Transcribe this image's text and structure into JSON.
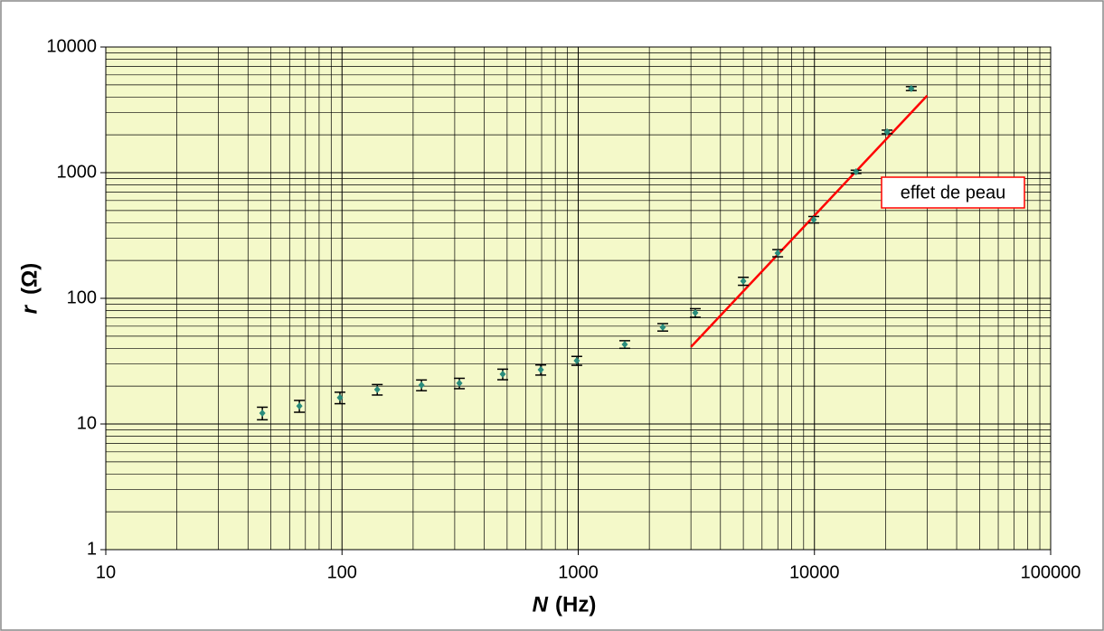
{
  "chart_data": {
    "type": "scatter",
    "x_label": "N",
    "x_unit": "(Hz)",
    "y_label": "r",
    "y_unit": "(Ω)",
    "x_log": true,
    "y_log": true,
    "grid": true,
    "xlim": [
      10,
      100000
    ],
    "xticks": [
      10,
      100,
      1000,
      10000,
      100000
    ],
    "ylim": [
      1,
      10000
    ],
    "yticks": [
      1,
      10,
      100,
      1000,
      10000
    ],
    "background": "#f4f9c9",
    "series": [
      {
        "color": "#2a8c7c",
        "x": [
          46,
          66,
          98,
          141,
          217,
          314,
          479,
          694,
          986,
          1574,
          2280,
          3130,
          5000,
          6990,
          9930,
          15000,
          20300,
          25700
        ],
        "values": [
          12.2,
          13.9,
          16.2,
          18.8,
          20.4,
          21.1,
          24.9,
          27.0,
          31.9,
          43,
          58.9,
          76.7,
          137,
          229,
          423,
          1016,
          2110,
          4670
        ],
        "errors": [
          1.4,
          1.5,
          1.7,
          1.8,
          2.0,
          2.0,
          2.4,
          2.5,
          2.6,
          3,
          4,
          6,
          10,
          15,
          25,
          30,
          70,
          170
        ]
      }
    ],
    "fit_line": {
      "color": "#ff0000",
      "x": [
        3000,
        30000
      ],
      "values": [
        41,
        4100
      ]
    },
    "annotation": "effet de peau"
  }
}
